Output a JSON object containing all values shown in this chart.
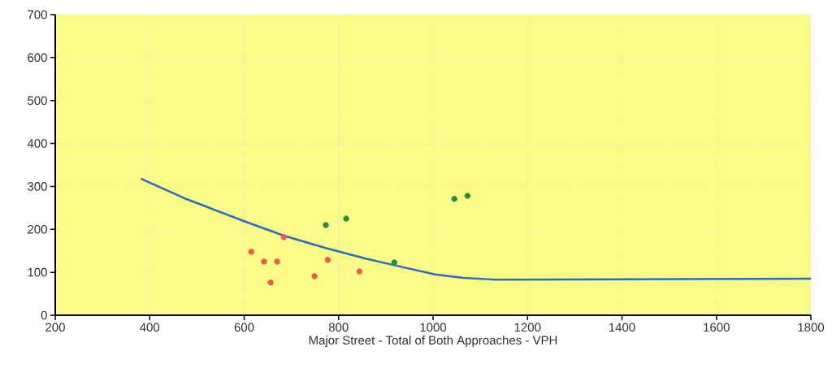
{
  "chart_data": {
    "type": "scatter",
    "xlabel": "Major Street - Total of Both Approaches - VPH",
    "xlim": [
      200,
      1800
    ],
    "xticks": [
      200,
      400,
      600,
      800,
      1000,
      1200,
      1400,
      1600,
      1800
    ],
    "ylim": [
      0,
      700
    ],
    "yticks": [
      0,
      100,
      200,
      300,
      400,
      500,
      600,
      700
    ],
    "grid": true,
    "marker": "circle",
    "series": [
      {
        "type": "line",
        "color": "#2a6ebb",
        "marker": "none",
        "line_style": "solid",
        "x": [
          381,
          479,
          600,
          685,
          771,
          857,
          944,
          1004,
          1064,
          1130,
          1800
        ],
        "values": [
          318,
          270,
          219,
          185,
          157,
          132,
          110,
          95,
          87,
          83,
          85
        ]
      },
      {
        "color": "#f0584f",
        "x": [
          615,
          642,
          670,
          656,
          684,
          749,
          777,
          844
        ],
        "values": [
          148,
          125,
          125,
          76,
          182,
          91,
          129,
          102
        ]
      },
      {
        "color": "#2e8b3e",
        "x": [
          773,
          816,
          918,
          1045,
          1073
        ],
        "values": [
          210,
          225,
          123,
          271,
          278
        ]
      }
    ]
  }
}
